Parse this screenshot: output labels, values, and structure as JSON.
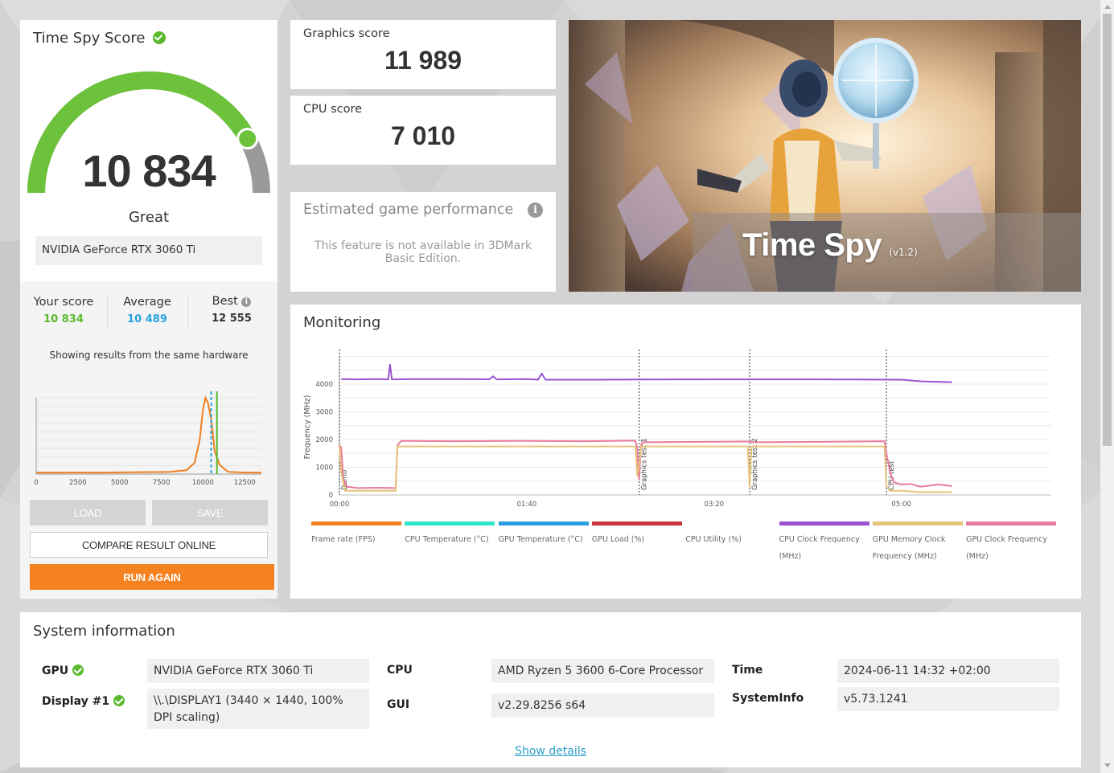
{
  "score_panel": {
    "title": "Time Spy Score",
    "total_score": "10 834",
    "rating": "Great",
    "gpu_name": "NVIDIA GeForce RTX 3060 Ti",
    "gauge_fraction": 0.84,
    "your_score_label": "Your score",
    "your_score_value": "10 834",
    "average_label": "Average",
    "average_value": "10 489",
    "best_label": "Best",
    "best_value": "12 555",
    "hardware_note": "Showing results from the same hardware"
  },
  "buttons": {
    "load": "LOAD",
    "save": "SAVE",
    "compare": "COMPARE RESULT ONLINE",
    "run_again": "RUN AGAIN"
  },
  "graphics_score": {
    "label": "Graphics score",
    "value": "11 989"
  },
  "cpu_score": {
    "label": "CPU score",
    "value": "7 010"
  },
  "estimated": {
    "title": "Estimated game performance",
    "message": "This feature is not available in 3DMark Basic Edition."
  },
  "banner": {
    "title": "Time Spy",
    "version": "(v1.2)"
  },
  "monitoring": {
    "title": "Monitoring",
    "legend": [
      {
        "name": "Frame rate (FPS)",
        "color": "#f07f1f"
      },
      {
        "name": "CPU Temperature (°C)",
        "color": "#2ee6c8"
      },
      {
        "name": "GPU Temperature (°C)",
        "color": "#2a9fe0"
      },
      {
        "name": "GPU Load (%)",
        "color": "#c8373a"
      },
      {
        "name": "CPU Utility (%)",
        "color": "#ffffff"
      },
      {
        "name": "CPU Clock Frequency (MHz)",
        "color": "#9953d0"
      },
      {
        "name": "GPU Memory Clock Frequency (MHz)",
        "color": "#e6c47a"
      },
      {
        "name": "GPU Clock Frequency (MHz)",
        "color": "#e87a9c"
      }
    ]
  },
  "chart_data": [
    {
      "type": "line",
      "ylabel": "Frequency (MHz)",
      "yticks": [
        "0",
        "1000",
        "2000",
        "3000",
        "4000"
      ],
      "xticks": [
        "00:00",
        "01:40",
        "03:20",
        "05:00"
      ],
      "ylim": [
        0,
        5000
      ],
      "xlim": [
        0,
        380
      ],
      "markers": [
        {
          "label": "Demo",
          "x": 0
        },
        {
          "label": "Graphics test 1",
          "x": 160
        },
        {
          "label": "Graphics test 2",
          "x": 219
        },
        {
          "label": "CPU test",
          "x": 292
        }
      ],
      "series": [
        {
          "name": "CPU Clock Frequency (MHz)",
          "color": "#9953d0",
          "points": [
            [
              1,
              4180
            ],
            [
              10,
              4170
            ],
            [
              20,
              4180
            ],
            [
              26,
              4170
            ],
            [
              27,
              4700
            ],
            [
              28,
              4170
            ],
            [
              40,
              4180
            ],
            [
              60,
              4180
            ],
            [
              80,
              4175
            ],
            [
              82,
              4280
            ],
            [
              84,
              4170
            ],
            [
              100,
              4180
            ],
            [
              106,
              4160
            ],
            [
              108,
              4380
            ],
            [
              110,
              4160
            ],
            [
              120,
              4160
            ],
            [
              140,
              4160
            ],
            [
              160,
              4165
            ],
            [
              200,
              4170
            ],
            [
              250,
              4170
            ],
            [
              300,
              4160
            ],
            [
              310,
              4100
            ],
            [
              320,
              4080
            ],
            [
              327,
              4070
            ]
          ]
        },
        {
          "name": "GPU Clock Frequency (MHz)",
          "color": "#e87a9c",
          "points": [
            [
              0,
              1800
            ],
            [
              1,
              1700
            ],
            [
              2,
              600
            ],
            [
              4,
              300
            ],
            [
              10,
              250
            ],
            [
              20,
              260
            ],
            [
              30,
              250
            ],
            [
              31,
              1800
            ],
            [
              33,
              1950
            ],
            [
              60,
              1940
            ],
            [
              100,
              1950
            ],
            [
              130,
              1940
            ],
            [
              158,
              1960
            ],
            [
              159,
              1700
            ],
            [
              160,
              550
            ],
            [
              161,
              1800
            ],
            [
              162,
              1900
            ],
            [
              200,
              1920
            ],
            [
              219,
              1930
            ],
            [
              220,
              1900
            ],
            [
              260,
              1920
            ],
            [
              291,
              1940
            ],
            [
              292,
              1500
            ],
            [
              294,
              800
            ],
            [
              296,
              450
            ],
            [
              300,
              380
            ],
            [
              305,
              400
            ],
            [
              310,
              300
            ],
            [
              320,
              380
            ],
            [
              327,
              320
            ]
          ]
        },
        {
          "name": "GPU Memory Clock Frequency (MHz)",
          "color": "#e6c47a",
          "points": [
            [
              0,
              1750
            ],
            [
              1,
              800
            ],
            [
              3,
              150
            ],
            [
              30,
              150
            ],
            [
              31,
              1750
            ],
            [
              158,
              1750
            ],
            [
              159,
              700
            ],
            [
              160,
              1000
            ],
            [
              161,
              1750
            ],
            [
              218,
              1750
            ],
            [
              219,
              300
            ],
            [
              220,
              1750
            ],
            [
              291,
              1750
            ],
            [
              292,
              300
            ],
            [
              294,
              150
            ],
            [
              300,
              150
            ],
            [
              310,
              100
            ],
            [
              327,
              100
            ]
          ]
        }
      ]
    },
    {
      "type": "area",
      "xticks": [
        "0",
        "2500",
        "5000",
        "7500",
        "10000",
        "12500"
      ],
      "xlim": [
        0,
        13500
      ],
      "series": [
        {
          "name": "distribution",
          "color": "#f07f1f",
          "points": [
            [
              0,
              0.02
            ],
            [
              4000,
              0.02
            ],
            [
              8000,
              0.03
            ],
            [
              9000,
              0.05
            ],
            [
              9500,
              0.15
            ],
            [
              9800,
              0.45
            ],
            [
              10000,
              0.85
            ],
            [
              10150,
              1.0
            ],
            [
              10300,
              0.93
            ],
            [
              10500,
              0.7
            ],
            [
              10700,
              0.3
            ],
            [
              11000,
              0.12
            ],
            [
              11500,
              0.03
            ],
            [
              12500,
              0.02
            ],
            [
              13500,
              0.02
            ]
          ]
        }
      ],
      "average_marker": 10489,
      "your_score_marker": 10834
    }
  ],
  "system_info": {
    "title": "System information",
    "gpu_label": "GPU",
    "gpu_value": "NVIDIA GeForce RTX 3060 Ti",
    "display_label": "Display #1",
    "display_value": "\\\\.\\DISPLAY1 (3440 × 1440, 100% DPI scaling)",
    "cpu_label": "CPU",
    "cpu_value": "AMD Ryzen 5 3600 6-Core Processor",
    "gui_label": "GUI",
    "gui_value": "v2.29.8256 s64",
    "time_label": "Time",
    "time_value": "2024-06-11 14:32 +02:00",
    "sysinfo_label": "SystemInfo",
    "sysinfo_value": "v5.73.1241",
    "show_details": "Show details"
  }
}
